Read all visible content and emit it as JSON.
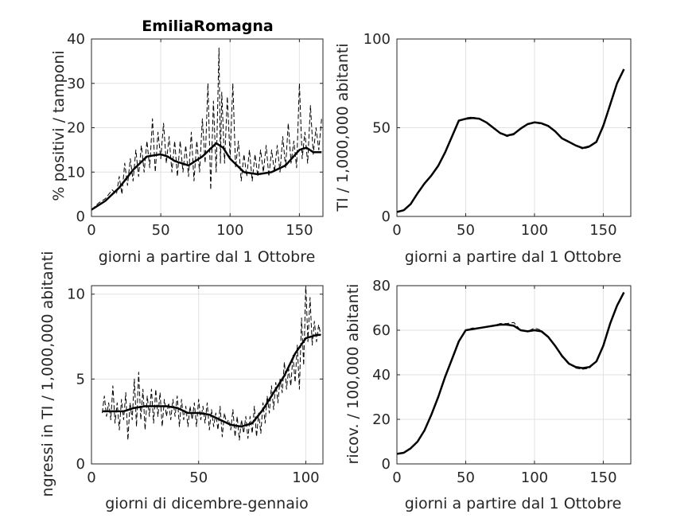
{
  "chart_data": [
    {
      "type": "line",
      "title": "EmiliaRomagna",
      "xlabel": "giorni a partire dal 1 Ottobre",
      "ylabel": "% positivi / tamponi",
      "xlim": [
        0,
        167
      ],
      "ylim": [
        0,
        40
      ],
      "xticks": [
        0,
        50,
        100,
        150
      ],
      "yticks": [
        0,
        10,
        20,
        30,
        40
      ],
      "grid": true,
      "series": [
        {
          "style": "dashed",
          "x": [
            0,
            5,
            10,
            15,
            18,
            20,
            22,
            24,
            26,
            28,
            30,
            32,
            34,
            36,
            38,
            40,
            42,
            44,
            46,
            48,
            50,
            52,
            54,
            56,
            58,
            60,
            62,
            64,
            66,
            68,
            70,
            72,
            74,
            76,
            78,
            80,
            82,
            84,
            86,
            88,
            90,
            92,
            93,
            94,
            96,
            98,
            100,
            102,
            104,
            106,
            108,
            110,
            112,
            114,
            116,
            118,
            120,
            122,
            124,
            126,
            128,
            130,
            132,
            134,
            136,
            138,
            140,
            142,
            144,
            146,
            148,
            150,
            152,
            154,
            156,
            158,
            160,
            162,
            164,
            166
          ],
          "y": [
            1.5,
            3,
            4,
            6,
            5,
            9,
            5,
            12,
            7,
            13,
            8,
            15,
            9,
            16,
            10,
            17,
            11,
            22,
            10,
            19,
            13,
            21,
            12,
            18,
            10,
            17,
            9,
            17,
            10,
            16,
            9,
            19,
            8,
            17,
            10,
            22,
            12,
            30,
            6,
            26,
            10,
            38,
            12,
            28,
            12,
            27,
            13,
            30,
            11,
            17,
            8,
            14,
            9,
            15,
            8,
            14,
            9,
            15,
            10,
            16,
            9,
            15,
            10,
            16,
            10,
            18,
            11,
            21,
            12,
            17,
            11,
            30,
            13,
            19,
            12,
            25,
            14,
            20,
            15,
            22
          ]
        },
        {
          "style": "solid",
          "x": [
            0,
            10,
            20,
            30,
            40,
            50,
            55,
            60,
            70,
            80,
            90,
            95,
            100,
            110,
            120,
            130,
            140,
            150,
            155,
            160,
            166
          ],
          "y": [
            1.5,
            3.5,
            6.5,
            10.5,
            13.5,
            14,
            13.5,
            12.5,
            11.5,
            13.5,
            16.5,
            15.5,
            13,
            10,
            9.5,
            10,
            11.5,
            15,
            15.5,
            14.5,
            14.5
          ]
        }
      ]
    },
    {
      "type": "line",
      "xlabel": "giorni a partire dal 1 Ottobre",
      "ylabel": "TI / 1,000,000 abitanti",
      "xlim": [
        0,
        170
      ],
      "ylim": [
        0,
        100
      ],
      "xticks": [
        0,
        50,
        100,
        150
      ],
      "yticks": [
        0,
        50,
        100
      ],
      "grid": true,
      "series": [
        {
          "style": "dashed",
          "x": [
            0,
            5,
            10,
            15,
            20,
            25,
            30,
            35,
            40,
            45,
            50,
            55,
            60,
            65,
            70,
            75,
            80,
            85,
            90,
            95,
            100,
            105,
            110,
            115,
            120,
            125,
            130,
            135,
            140,
            145,
            150,
            155,
            160,
            165
          ],
          "y": [
            2.5,
            3.5,
            7,
            13,
            19,
            23,
            28,
            36,
            45,
            54,
            55.5,
            56,
            55,
            53,
            50,
            47,
            45,
            46,
            50,
            52,
            53,
            52,
            51,
            48,
            44,
            42,
            40,
            38,
            39,
            42,
            52,
            63,
            75,
            83
          ]
        },
        {
          "style": "solid",
          "x": [
            0,
            5,
            10,
            15,
            20,
            25,
            30,
            35,
            40,
            45,
            50,
            55,
            60,
            65,
            70,
            75,
            80,
            85,
            90,
            95,
            100,
            105,
            110,
            115,
            120,
            125,
            130,
            135,
            140,
            145,
            150,
            155,
            160,
            165
          ],
          "y": [
            2.5,
            3.5,
            7,
            13,
            18.5,
            23,
            28.5,
            36,
            45,
            54,
            55,
            55.5,
            55,
            53,
            50,
            47,
            45.5,
            46.5,
            49.5,
            52,
            53,
            52.5,
            51,
            48,
            44,
            42,
            40,
            38.5,
            39.5,
            42,
            51,
            63,
            75,
            83
          ]
        }
      ]
    },
    {
      "type": "line",
      "xlabel": "giorni di dicembre-gennaio",
      "ylabel": "ngressi in TI / 1,000,000 abitanti",
      "xlim": [
        0,
        108
      ],
      "ylim": [
        0,
        10.5
      ],
      "xticks": [
        0,
        50,
        100
      ],
      "yticks": [
        0,
        5,
        10
      ],
      "grid": true,
      "series": [
        {
          "style": "dashed",
          "x": [
            5,
            6,
            7,
            8,
            9,
            10,
            11,
            12,
            13,
            14,
            15,
            16,
            17,
            18,
            19,
            20,
            21,
            22,
            23,
            24,
            25,
            26,
            27,
            28,
            29,
            30,
            31,
            32,
            33,
            34,
            35,
            36,
            37,
            38,
            39,
            40,
            41,
            42,
            43,
            44,
            45,
            46,
            47,
            48,
            49,
            50,
            51,
            52,
            53,
            54,
            55,
            56,
            57,
            58,
            59,
            60,
            61,
            62,
            63,
            64,
            65,
            66,
            67,
            68,
            69,
            70,
            71,
            72,
            73,
            74,
            75,
            76,
            77,
            78,
            79,
            80,
            81,
            82,
            83,
            84,
            85,
            86,
            87,
            88,
            89,
            90,
            91,
            92,
            93,
            94,
            95,
            96,
            97,
            98,
            99,
            100,
            101,
            102,
            103,
            104,
            105,
            106,
            107
          ],
          "y": [
            3,
            4,
            2.8,
            3.6,
            2.6,
            4.6,
            2.4,
            3.6,
            2,
            3.8,
            2.6,
            4.2,
            1.4,
            3.6,
            2.6,
            5,
            2.2,
            5.4,
            2.6,
            4.4,
            2,
            4,
            2.8,
            4.4,
            2.4,
            4.4,
            2.8,
            4.2,
            2.2,
            3.8,
            2.8,
            3.6,
            2.6,
            3.8,
            2.8,
            4,
            2.2,
            3.8,
            2.6,
            3.4,
            2.2,
            3.4,
            2.6,
            3.6,
            2.2,
            3.8,
            2.6,
            3.4,
            2.4,
            3.6,
            2,
            3.2,
            2.2,
            3,
            2,
            3.4,
            1.6,
            3,
            2.4,
            2.6,
            2,
            3.2,
            1.6,
            2.8,
            1.4,
            2.6,
            1.8,
            2.8,
            1.5,
            2.8,
            1.8,
            3.4,
            1.6,
            3,
            1.8,
            3.6,
            2.4,
            4,
            3,
            4.6,
            3.2,
            4.8,
            3.6,
            5,
            4.2,
            6,
            4.4,
            5.6,
            4.6,
            6.4,
            4.8,
            7,
            4.4,
            8.6,
            5.8,
            10.6,
            7.2,
            9.8,
            7,
            8.4,
            7.2,
            8.2,
            7.6
          ]
        },
        {
          "style": "solid",
          "x": [
            5,
            10,
            15,
            20,
            25,
            30,
            35,
            40,
            45,
            50,
            55,
            60,
            65,
            70,
            75,
            80,
            85,
            90,
            95,
            100,
            105,
            107
          ],
          "y": [
            3.1,
            3.1,
            3.1,
            3.3,
            3.4,
            3.4,
            3.4,
            3.3,
            3.0,
            3.0,
            2.9,
            2.6,
            2.3,
            2.2,
            2.4,
            3.2,
            4.2,
            5.2,
            6.5,
            7.4,
            7.6,
            7.6
          ]
        }
      ]
    },
    {
      "type": "line",
      "xlabel": "giorni a partire dal 1 Ottobre",
      "ylabel": "ricov. / 100,000 abitanti",
      "xlim": [
        0,
        170
      ],
      "ylim": [
        0,
        80
      ],
      "xticks": [
        0,
        50,
        100,
        150
      ],
      "yticks": [
        0,
        20,
        40,
        60,
        80
      ],
      "grid": true,
      "series": [
        {
          "style": "dashed",
          "x": [
            0,
            5,
            10,
            15,
            20,
            25,
            30,
            35,
            40,
            45,
            50,
            55,
            60,
            65,
            70,
            75,
            80,
            85,
            90,
            95,
            100,
            105,
            110,
            115,
            120,
            125,
            130,
            135,
            140,
            145,
            150,
            155,
            160,
            165
          ],
          "y": [
            4.5,
            5,
            7,
            10,
            15,
            22,
            30,
            39,
            47,
            55,
            60,
            61,
            61,
            61.5,
            62,
            63,
            63,
            63.5,
            60,
            59.5,
            61,
            60,
            57,
            53,
            48,
            45,
            43,
            42.5,
            43,
            46,
            53,
            63,
            71,
            77
          ]
        },
        {
          "style": "solid",
          "x": [
            0,
            5,
            10,
            15,
            20,
            25,
            30,
            35,
            40,
            45,
            50,
            55,
            60,
            65,
            70,
            75,
            80,
            85,
            90,
            95,
            100,
            105,
            110,
            115,
            120,
            125,
            130,
            135,
            140,
            145,
            150,
            155,
            160,
            165
          ],
          "y": [
            4.5,
            5,
            7,
            10,
            15,
            22,
            30,
            39,
            47,
            55,
            60,
            60.5,
            61,
            61.5,
            62,
            62.5,
            62.5,
            62,
            60,
            59.5,
            60,
            59.5,
            57,
            53,
            48.5,
            45,
            43.5,
            43,
            43.5,
            46,
            53,
            63,
            71,
            77
          ]
        }
      ]
    }
  ]
}
